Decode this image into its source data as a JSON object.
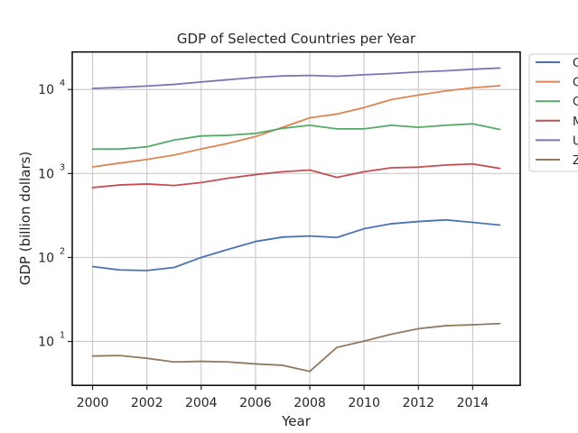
{
  "chart_data": {
    "type": "line",
    "title": "GDP of Selected Countries per Year",
    "xlabel": "Year",
    "ylabel": "GDP (billion dollars)",
    "yscale": "log",
    "xlim": [
      1999.25,
      2015.75
    ],
    "ylim": [
      3,
      28000
    ],
    "grid": true,
    "legend_position": "outside-upper-right",
    "x": [
      2000,
      2001,
      2002,
      2003,
      2004,
      2005,
      2006,
      2007,
      2008,
      2009,
      2010,
      2011,
      2012,
      2013,
      2014,
      2015
    ],
    "x_ticks": [
      2000,
      2002,
      2004,
      2006,
      2008,
      2010,
      2012,
      2014
    ],
    "y_ticks": [
      {
        "value": 10,
        "base": "10",
        "exp": "1"
      },
      {
        "value": 100,
        "base": "10",
        "exp": "2"
      },
      {
        "value": 1000,
        "base": "10",
        "exp": "3"
      },
      {
        "value": 10000,
        "base": "10",
        "exp": "4"
      }
    ],
    "series": [
      {
        "name": "C",
        "color": "#4c72b0",
        "values": [
          78,
          71,
          70,
          76,
          100,
          125,
          155,
          175,
          180,
          173,
          220,
          252,
          268,
          280,
          262,
          243
        ]
      },
      {
        "name": "C",
        "color": "#dd8452",
        "values": [
          1200,
          1330,
          1470,
          1660,
          1960,
          2290,
          2750,
          3550,
          4600,
          5100,
          6100,
          7600,
          8600,
          9600,
          10500,
          11100
        ]
      },
      {
        "name": "C",
        "color": "#55a868",
        "values": [
          1950,
          1950,
          2080,
          2500,
          2800,
          2850,
          3000,
          3450,
          3750,
          3400,
          3400,
          3750,
          3550,
          3750,
          3900,
          3350
        ]
      },
      {
        "name": "M",
        "color": "#c44e52",
        "values": [
          680,
          730,
          750,
          720,
          780,
          880,
          970,
          1050,
          1100,
          900,
          1050,
          1170,
          1190,
          1260,
          1300,
          1150
        ]
      },
      {
        "name": "U",
        "color": "#8172b3",
        "values": [
          10300,
          10600,
          11000,
          11500,
          12300,
          13100,
          13900,
          14500,
          14700,
          14400,
          15000,
          15500,
          16200,
          16700,
          17400,
          18000
        ]
      },
      {
        "name": "Z",
        "color": "#937860",
        "values": [
          6.7,
          6.8,
          6.3,
          5.7,
          5.8,
          5.7,
          5.4,
          5.2,
          4.4,
          8.5,
          10.1,
          12.2,
          14.2,
          15.4,
          15.8,
          16.3
        ]
      }
    ]
  }
}
